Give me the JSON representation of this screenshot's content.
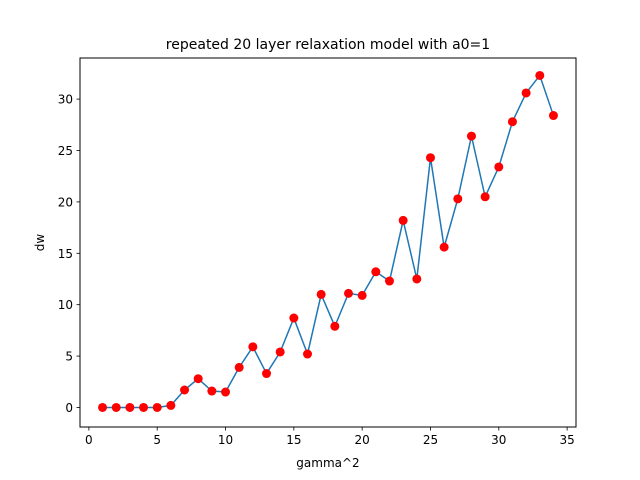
{
  "chart_data": {
    "type": "line",
    "title": "repeated 20 layer relaxation model with a0=1",
    "xlabel": "gamma^2",
    "ylabel": "dw",
    "xlim": [
      -0.65,
      35.65
    ],
    "ylim": [
      -1.9,
      34.0
    ],
    "xticks": [
      0,
      5,
      10,
      15,
      20,
      25,
      30,
      35
    ],
    "yticks": [
      0,
      5,
      10,
      15,
      20,
      25,
      30
    ],
    "grid": false,
    "line_color": "#1f77b4",
    "marker_color": "#ff0000",
    "x": [
      1,
      2,
      3,
      4,
      5,
      6,
      7,
      8,
      9,
      10,
      11,
      12,
      13,
      14,
      15,
      16,
      17,
      18,
      19,
      20,
      21,
      22,
      23,
      24,
      25,
      26,
      27,
      28,
      29,
      30,
      31,
      32,
      33,
      34
    ],
    "series": [
      {
        "values": [
          0.0,
          0.0,
          0.0,
          0.0,
          0.0,
          0.2,
          1.7,
          2.8,
          1.6,
          1.5,
          3.9,
          5.9,
          3.3,
          5.4,
          8.7,
          5.2,
          11.0,
          7.9,
          11.1,
          10.9,
          13.2,
          12.3,
          18.2,
          12.5,
          24.3,
          15.6,
          20.3,
          26.4,
          20.5,
          23.4,
          27.8,
          30.6,
          32.3,
          28.4
        ]
      }
    ]
  }
}
